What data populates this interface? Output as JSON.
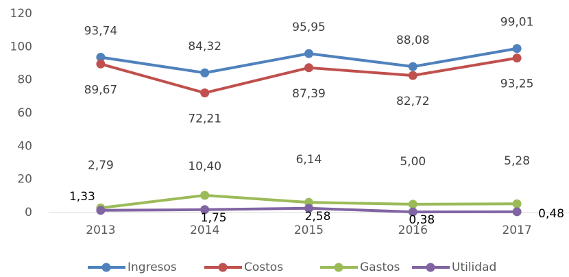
{
  "chart_data": {
    "type": "line",
    "categories": [
      "2013",
      "2014",
      "2015",
      "2016",
      "2017"
    ],
    "series": [
      {
        "name": "Ingresos",
        "color": "#4f81bd",
        "values": [
          93.74,
          84.32,
          95.95,
          88.08,
          99.01
        ],
        "value_labels": [
          "93,74",
          "84,32",
          "95,95",
          "88,08",
          "99,01"
        ]
      },
      {
        "name": "Costos",
        "color": "#c0504d",
        "values": [
          89.67,
          72.21,
          87.39,
          82.72,
          93.25
        ],
        "value_labels": [
          "89,67",
          "72,21",
          "87,39",
          "82,72",
          "93,25"
        ]
      },
      {
        "name": "Gastos",
        "color": "#9bbb59",
        "values": [
          2.79,
          10.4,
          6.14,
          5.0,
          5.28
        ],
        "value_labels": [
          "2,79",
          "10,40",
          "6,14",
          "5,00",
          "5,28"
        ]
      },
      {
        "name": "Utilidad",
        "color": "#8064a2",
        "values": [
          1.33,
          1.75,
          2.58,
          0.38,
          0.48
        ],
        "value_labels": [
          "1,33",
          "1,75",
          "2,58",
          "0,38",
          "0,48"
        ]
      }
    ],
    "ylim": [
      0,
      120
    ],
    "yticks": [
      0,
      20,
      40,
      60,
      80,
      100,
      120
    ],
    "grid": false,
    "legend": "bottom"
  }
}
